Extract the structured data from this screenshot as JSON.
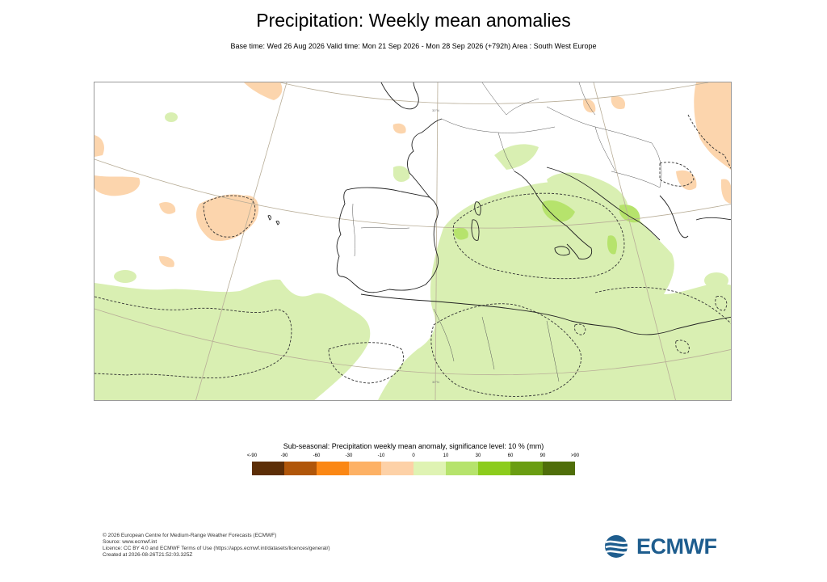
{
  "header": {
    "title": "Precipitation: Weekly mean anomalies",
    "subtitle": "Base time: Wed 26 Aug 2026 Valid time: Mon 21 Sep 2026 - Mon 28 Sep 2026 (+792h) Area : South West Europe"
  },
  "map": {
    "grid_labels": [
      "30°N",
      "30°N"
    ],
    "colors": {
      "pos_light": "#d9efb2",
      "pos_mid": "#b6e36c",
      "neg_light": "#fcd5ad",
      "coast": "#222222",
      "border": "#444444",
      "graticule": "#b8ad97"
    }
  },
  "legend": {
    "title": "Sub-seasonal: Precipitation weekly mean anomaly, significance level: 10 % (mm)",
    "ticks": [
      "<-90",
      "-90",
      "-60",
      "-30",
      "-10",
      "0",
      "10",
      "30",
      "60",
      "90",
      ">90"
    ],
    "colors": [
      "#5c2e07",
      "#b0560a",
      "#fb8714",
      "#fdb165",
      "#fdd1a7",
      "#dff3b3",
      "#b6e36c",
      "#8ccc1c",
      "#6a9d12",
      "#4f6e0a"
    ]
  },
  "footer": {
    "lines": [
      "© 2026 European Centre for Medium-Range Weather Forecasts (ECMWF)",
      "Source: www.ecmwf.int",
      "Licence: CC BY 4.0 and ECMWF Terms of Use (https://apps.ecmwf.int/datasets/licences/general/)",
      "Created at 2026-08-26T21:52:03.325Z"
    ]
  },
  "logo": {
    "text": "ECMWF"
  }
}
